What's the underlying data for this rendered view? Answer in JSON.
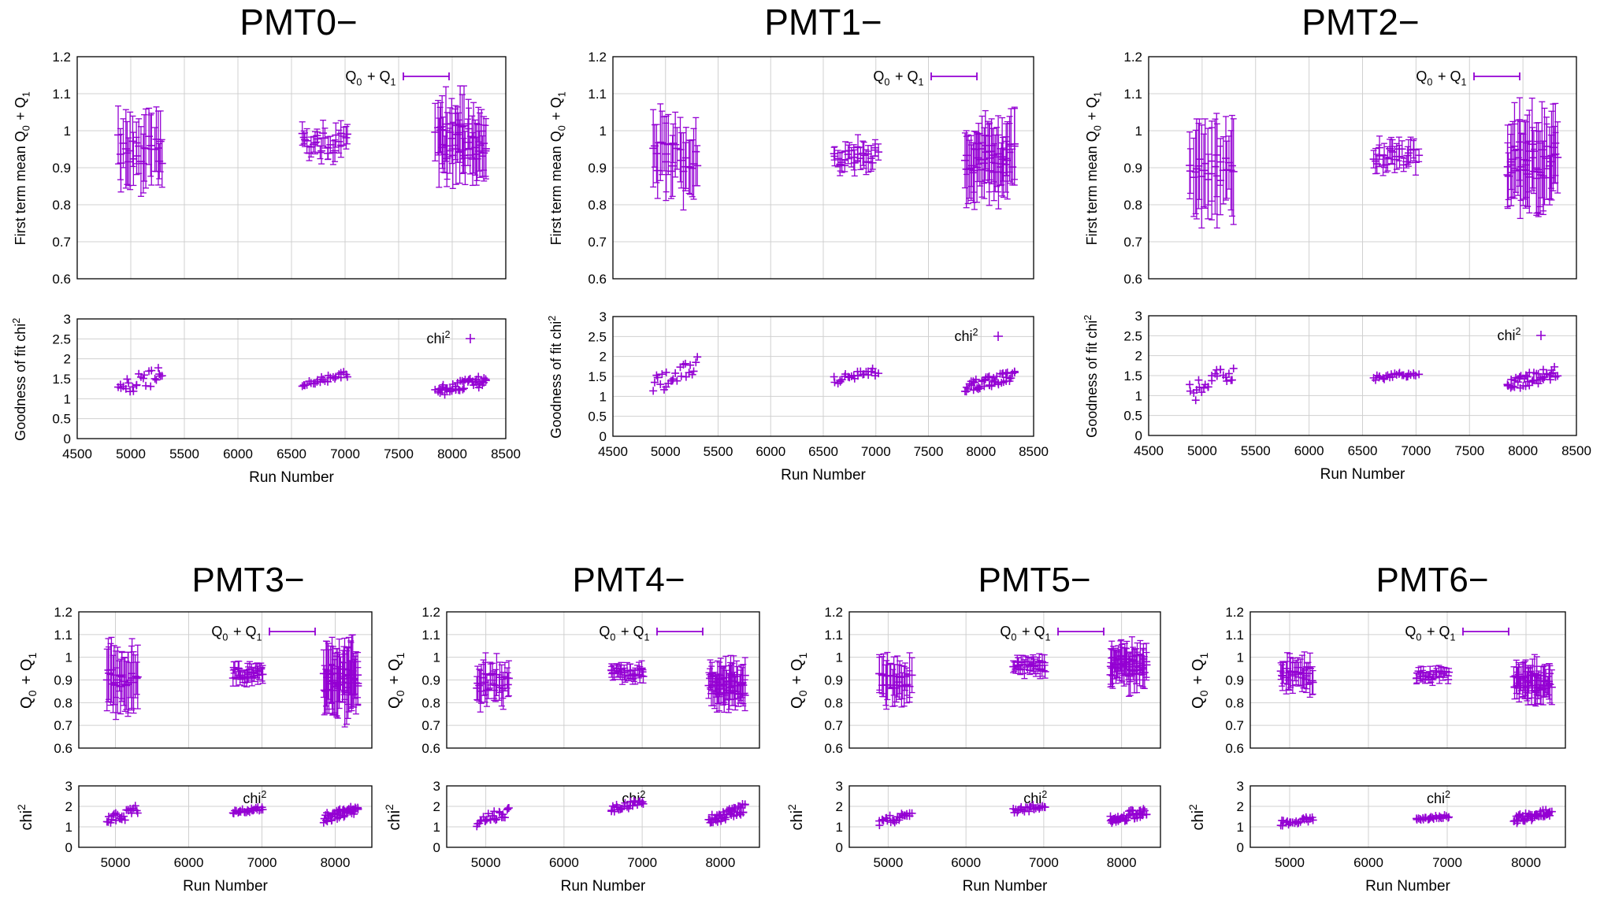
{
  "legend_q": "Q0 + Q1",
  "legend_chi": "chi2",
  "colors": {
    "series": "#9400D3",
    "grid": "#d0d0d0",
    "axis": "#000000"
  },
  "top_row": {
    "q_ylabel": "First term mean Q0 + Q1",
    "chi_ylabel": "Goodness of fit chi2",
    "xlabel": "Run Number",
    "x_ticks": [
      "4500",
      "5000",
      "5500",
      "6000",
      "6500",
      "7000",
      "7500",
      "8000",
      "8500"
    ]
  },
  "bottom_row": {
    "q_ylabel": "Q0 + Q1",
    "chi_ylabel": "chi2",
    "xlabel": "Run Number",
    "x_ticks": [
      "5000",
      "6000",
      "7000",
      "8000"
    ]
  },
  "q_y_ticks": [
    "0.6",
    "0.7",
    "0.8",
    "0.9",
    "1",
    "1.1",
    "1.2"
  ],
  "chi_y_ticks": [
    "0",
    "0.5",
    "1",
    "1.5",
    "2",
    "2.5",
    "3"
  ],
  "chi_y_ticks_bottom": [
    "0",
    "1",
    "2",
    "3"
  ],
  "chart_data": [
    {
      "type": "scatter",
      "title": "PMT0−",
      "xlim": [
        4500,
        8500
      ],
      "ylim_q": [
        0.6,
        1.2
      ],
      "ylim_chi": [
        0,
        3
      ],
      "clusters": [
        {
          "x_range": [
            4880,
            5300
          ],
          "q_center": 0.95,
          "q_spread": 0.04,
          "q_err": 0.09,
          "chi_range": [
            1.0,
            1.85
          ]
        },
        {
          "x_range": [
            6600,
            7020
          ],
          "q_center": 0.965,
          "q_spread": 0.03,
          "q_err": 0.03,
          "chi_range": [
            1.3,
            1.7
          ]
        },
        {
          "x_range": [
            7850,
            8320
          ],
          "q_center": 0.97,
          "q_spread": 0.05,
          "q_err": 0.09,
          "chi_range": [
            1.05,
            1.6
          ]
        }
      ]
    },
    {
      "type": "scatter",
      "title": "PMT1−",
      "xlim": [
        4500,
        8500
      ],
      "ylim_q": [
        0.6,
        1.2
      ],
      "ylim_chi": [
        0,
        3
      ],
      "clusters": [
        {
          "x_range": [
            4880,
            5300
          ],
          "q_center": 0.93,
          "q_spread": 0.04,
          "q_err": 0.09,
          "chi_range": [
            1.0,
            2.0
          ]
        },
        {
          "x_range": [
            6600,
            7020
          ],
          "q_center": 0.93,
          "q_spread": 0.025,
          "q_err": 0.03,
          "chi_range": [
            1.3,
            1.75
          ]
        },
        {
          "x_range": [
            7850,
            8320
          ],
          "q_center": 0.925,
          "q_spread": 0.04,
          "q_err": 0.09,
          "chi_range": [
            1.1,
            1.65
          ]
        }
      ]
    },
    {
      "type": "scatter",
      "title": "PMT2−",
      "xlim": [
        4500,
        8500
      ],
      "ylim_q": [
        0.6,
        1.2
      ],
      "ylim_chi": [
        0,
        3
      ],
      "clusters": [
        {
          "x_range": [
            4880,
            5300
          ],
          "q_center": 0.9,
          "q_spread": 0.04,
          "q_err": 0.12,
          "chi_range": [
            0.8,
            1.9
          ]
        },
        {
          "x_range": [
            6600,
            7020
          ],
          "q_center": 0.93,
          "q_spread": 0.025,
          "q_err": 0.03,
          "chi_range": [
            1.35,
            1.65
          ]
        },
        {
          "x_range": [
            7850,
            8320
          ],
          "q_center": 0.92,
          "q_spread": 0.05,
          "q_err": 0.11,
          "chi_range": [
            1.1,
            1.75
          ]
        }
      ]
    },
    {
      "type": "scatter",
      "title": "PMT3−",
      "xlim": [
        4500,
        8500
      ],
      "ylim_q": [
        0.6,
        1.2
      ],
      "ylim_chi": [
        0,
        3
      ],
      "clusters": [
        {
          "x_range": [
            4880,
            5300
          ],
          "q_center": 0.91,
          "q_spread": 0.04,
          "q_err": 0.13,
          "chi_range": [
            1.0,
            2.1
          ]
        },
        {
          "x_range": [
            6600,
            7020
          ],
          "q_center": 0.93,
          "q_spread": 0.025,
          "q_err": 0.035,
          "chi_range": [
            1.6,
            2.0
          ]
        },
        {
          "x_range": [
            7850,
            8320
          ],
          "q_center": 0.9,
          "q_spread": 0.05,
          "q_err": 0.14,
          "chi_range": [
            1.2,
            2.1
          ]
        }
      ]
    },
    {
      "type": "scatter",
      "title": "PMT4−",
      "xlim": [
        4500,
        8500
      ],
      "ylim_q": [
        0.6,
        1.2
      ],
      "ylim_chi": [
        0,
        3
      ],
      "clusters": [
        {
          "x_range": [
            4880,
            5300
          ],
          "q_center": 0.89,
          "q_spread": 0.04,
          "q_err": 0.08,
          "chi_range": [
            1.0,
            2.0
          ]
        },
        {
          "x_range": [
            6600,
            7020
          ],
          "q_center": 0.93,
          "q_spread": 0.025,
          "q_err": 0.03,
          "chi_range": [
            1.7,
            2.4
          ]
        },
        {
          "x_range": [
            7850,
            8320
          ],
          "q_center": 0.88,
          "q_spread": 0.05,
          "q_err": 0.08,
          "chi_range": [
            1.1,
            2.2
          ]
        }
      ]
    },
    {
      "type": "scatter",
      "title": "PMT5−",
      "xlim": [
        4500,
        8500
      ],
      "ylim_q": [
        0.6,
        1.2
      ],
      "ylim_chi": [
        0,
        3
      ],
      "clusters": [
        {
          "x_range": [
            4880,
            5300
          ],
          "q_center": 0.89,
          "q_spread": 0.04,
          "q_err": 0.09,
          "chi_range": [
            1.0,
            1.9
          ]
        },
        {
          "x_range": [
            6600,
            7020
          ],
          "q_center": 0.96,
          "q_spread": 0.025,
          "q_err": 0.035,
          "chi_range": [
            1.6,
            2.2
          ]
        },
        {
          "x_range": [
            7850,
            8320
          ],
          "q_center": 0.96,
          "q_spread": 0.05,
          "q_err": 0.08,
          "chi_range": [
            1.1,
            2.0
          ]
        }
      ]
    },
    {
      "type": "scatter",
      "title": "PMT6−",
      "xlim": [
        4500,
        8500
      ],
      "ylim_q": [
        0.6,
        1.2
      ],
      "ylim_chi": [
        0,
        3
      ],
      "clusters": [
        {
          "x_range": [
            4880,
            5300
          ],
          "q_center": 0.92,
          "q_spread": 0.035,
          "q_err": 0.07,
          "chi_range": [
            1.0,
            1.6
          ]
        },
        {
          "x_range": [
            6600,
            7020
          ],
          "q_center": 0.92,
          "q_spread": 0.02,
          "q_err": 0.025,
          "chi_range": [
            1.3,
            1.6
          ]
        },
        {
          "x_range": [
            7850,
            8320
          ],
          "q_center": 0.89,
          "q_spread": 0.04,
          "q_err": 0.07,
          "chi_range": [
            1.1,
            2.0
          ]
        }
      ]
    }
  ]
}
